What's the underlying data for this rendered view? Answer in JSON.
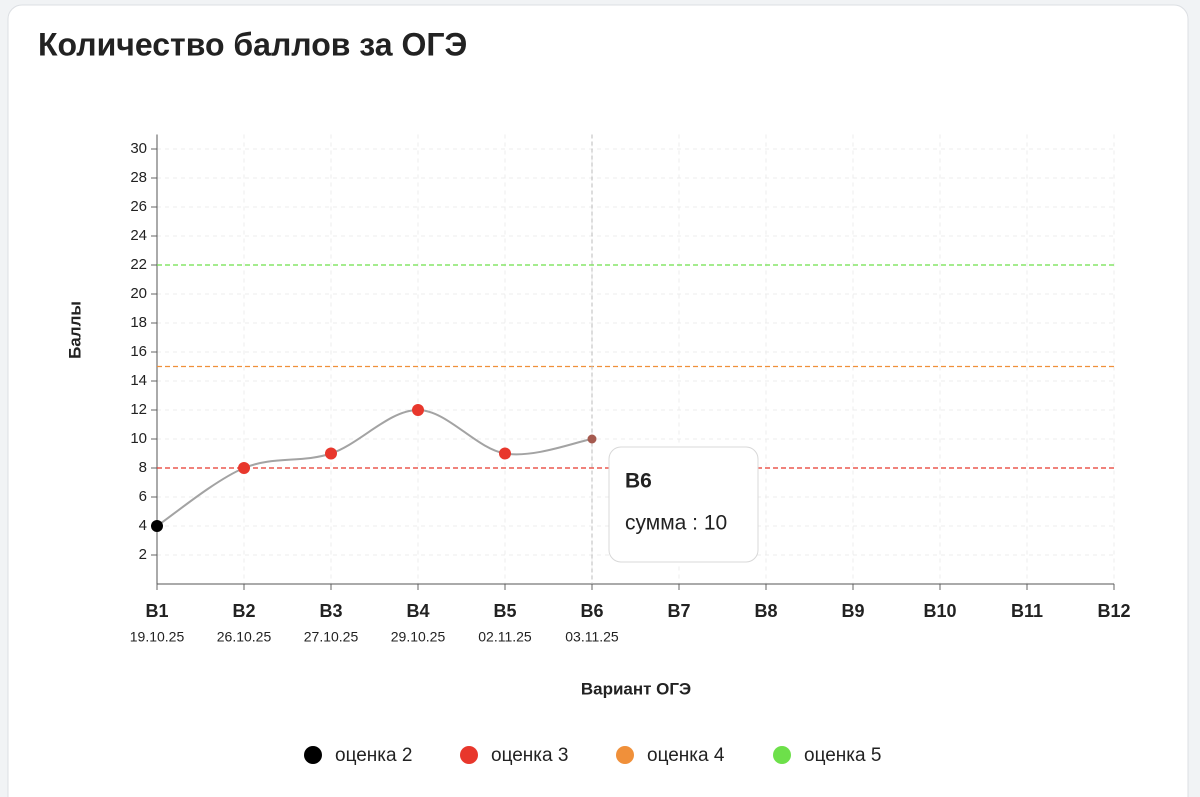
{
  "chart_data": {
    "type": "line",
    "title": "Количество баллов за ОГЭ",
    "x_label": "Вариант ОГЭ",
    "y_label": "Баллы",
    "categories": [
      "B1",
      "B2",
      "B3",
      "B4",
      "B5",
      "B6",
      "B7",
      "B8",
      "B9",
      "B10",
      "B11",
      "B12"
    ],
    "dates": [
      "19.10.25",
      "26.10.25",
      "27.10.25",
      "29.10.25",
      "02.11.25",
      "03.11.25",
      null,
      null,
      null,
      null,
      null,
      null
    ],
    "series": [
      {
        "color": "#a3a3a3",
        "values": [
          4,
          8,
          9,
          12,
          9,
          10,
          null,
          null,
          null,
          null,
          null,
          null
        ],
        "point_colors": [
          "#000000",
          "#e8372c",
          "#e8372c",
          "#e8372c",
          "#e8372c",
          "#a55a4f",
          null,
          null,
          null,
          null,
          null,
          null
        ]
      }
    ],
    "ylim": [
      0,
      31
    ],
    "yticks": [
      2,
      4,
      6,
      8,
      10,
      12,
      14,
      16,
      18,
      20,
      22,
      24,
      26,
      28,
      30
    ],
    "grid": true,
    "thresholds": [
      {
        "value": 8,
        "color": "#e8372c"
      },
      {
        "value": 15,
        "color": "#f0903a"
      },
      {
        "value": 22,
        "color": "#6de04a"
      }
    ],
    "legend": [
      {
        "name": "оценка 2",
        "color": "#000000"
      },
      {
        "name": "оценка 3",
        "color": "#e8372c"
      },
      {
        "name": "оценка 4",
        "color": "#f0903a"
      },
      {
        "name": "оценка 5",
        "color": "#6de04a"
      }
    ],
    "tooltip": {
      "category_index": 5,
      "text": "сумма : 10"
    }
  }
}
